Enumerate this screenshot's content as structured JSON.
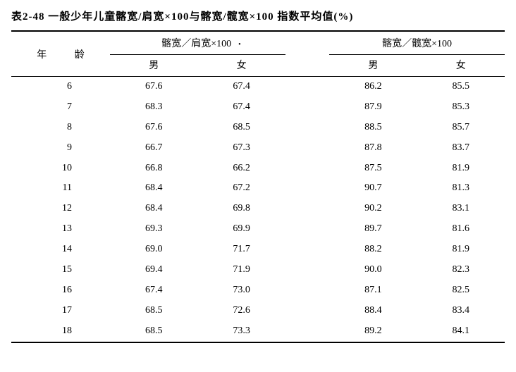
{
  "title": "表2-48  一般少年儿童髂宽/肩宽×100与髂宽/髋宽×100 指数平均值(%)",
  "header": {
    "age": "年  龄",
    "group1": "髂宽／肩宽×100",
    "group2": "髂宽／髋宽×100",
    "male": "男",
    "female": "女"
  },
  "rows": [
    {
      "age": "6",
      "a": "67.6",
      "b": "67.4",
      "c": "86.2",
      "d": "85.5"
    },
    {
      "age": "7",
      "a": "68.3",
      "b": "67.4",
      "c": "87.9",
      "d": "85.3"
    },
    {
      "age": "8",
      "a": "67.6",
      "b": "68.5",
      "c": "88.5",
      "d": "85.7"
    },
    {
      "age": "9",
      "a": "66.7",
      "b": "67.3",
      "c": "87.8",
      "d": "83.7"
    },
    {
      "age": "10",
      "a": "66.8",
      "b": "66.2",
      "c": "87.5",
      "d": "81.9"
    },
    {
      "age": "11",
      "a": "68.4",
      "b": "67.2",
      "c": "90.7",
      "d": "81.3"
    },
    {
      "age": "12",
      "a": "68.4",
      "b": "69.8",
      "c": "90.2",
      "d": "83.1"
    },
    {
      "age": "13",
      "a": "69.3",
      "b": "69.9",
      "c": "89.7",
      "d": "81.6"
    },
    {
      "age": "14",
      "a": "69.0",
      "b": "71.7",
      "c": "88.2",
      "d": "81.9"
    },
    {
      "age": "15",
      "a": "69.4",
      "b": "71.9",
      "c": "90.0",
      "d": "82.3"
    },
    {
      "age": "16",
      "a": "67.4",
      "b": "73.0",
      "c": "87.1",
      "d": "82.5"
    },
    {
      "age": "17",
      "a": "68.5",
      "b": "72.6",
      "c": "88.4",
      "d": "83.4"
    },
    {
      "age": "18",
      "a": "68.5",
      "b": "73.3",
      "c": "89.2",
      "d": "84.1"
    }
  ]
}
